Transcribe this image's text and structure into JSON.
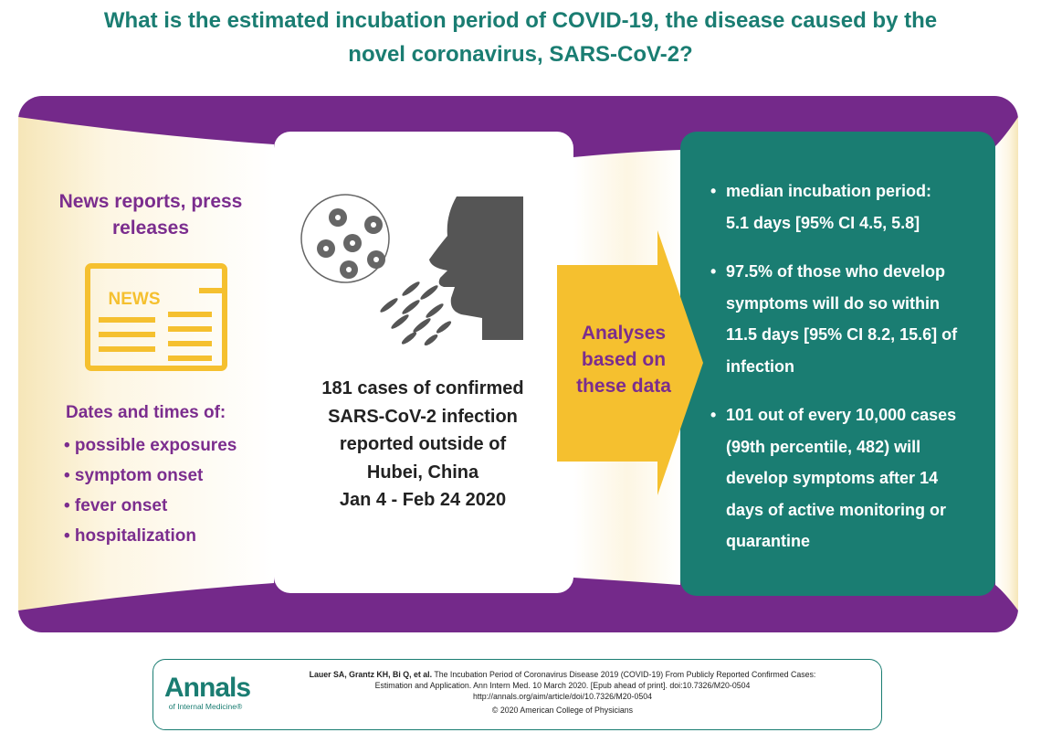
{
  "title": {
    "line1": "What is the estimated incubation period of COVID-19, the disease caused by the",
    "line2": "novel coronavirus, SARS-CoV-2?"
  },
  "sources": {
    "heading_line1": "News reports, press",
    "heading_line2": "releases",
    "news_icon_text": "NEWS",
    "subheading": "Dates and times of:",
    "items": [
      "• possible exposures",
      "• symptom onset",
      "• fever onset",
      "• hospitalization"
    ]
  },
  "cases": {
    "lines": [
      "181 cases of confirmed",
      "SARS-CoV-2 infection",
      "reported outside of",
      "Hubei, China",
      "Jan 4 - Feb 24 2020"
    ]
  },
  "arrow": {
    "lines": [
      "Analyses",
      "based on",
      "these data"
    ]
  },
  "findings": [
    {
      "lines": [
        "median incubation period:",
        "5.1 days [95% CI 4.5, 5.8]"
      ]
    },
    {
      "lines": [
        "97.5% of those who develop",
        "symptoms will do so within",
        "11.5 days [95% CI 8.2, 15.6] of",
        "infection"
      ]
    },
    {
      "lines": [
        "101 out of every 10,000 cases",
        "(99th percentile, 482) will",
        "develop symptoms after 14",
        "days of active monitoring or",
        "quarantine"
      ]
    }
  ],
  "citation": {
    "logo_word": "Annals",
    "logo_sub": "of Internal Medicine",
    "logo_mark": "®",
    "authors": "Lauer SA, Grantz KH, Bi Q, et al.",
    "title_part": " The Incubation Period of Coronavirus Disease 2019 (COVID-19) From Publicly Reported Confirmed Cases:",
    "line2": "Estimation and Application. Ann Intern Med. 10 March 2020. [Epub ahead of print]. doi:10.7326/M20-0504",
    "url": "http://annals.org/aim/article/doi/10.7326/M20-0504",
    "copyright": "© 2020 American College of Physicians"
  },
  "colors": {
    "teal": "#1a7d72",
    "purple_band": "#74298a",
    "purple_text": "#7b2d8e",
    "arrow_yellow": "#f5c02f",
    "cream": "#fcf3dc",
    "icon_yellow": "#f5c02f",
    "icon_gray": "#666666"
  }
}
